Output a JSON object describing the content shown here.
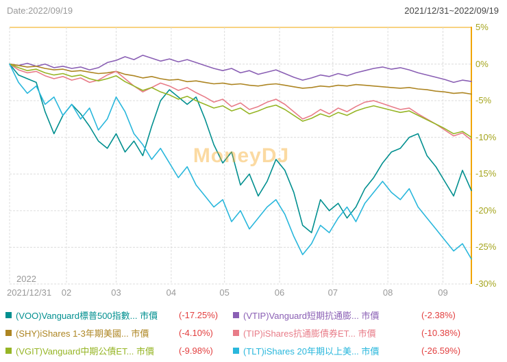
{
  "header": {
    "date_label": "Date:2022/09/19",
    "range_label": "2021/12/31~2022/09/19"
  },
  "watermark": "MoneyDJ",
  "colors": {
    "axis_line": "#f0a500",
    "grid_line": "#dcdcdc",
    "y_tick_label": "#a5a51e",
    "x_tick_label": "#999999",
    "negative_value": "#e23e3e",
    "watermark": "#f7a823"
  },
  "chart_data": {
    "type": "line",
    "title": "",
    "x_axis": {
      "year_label": "2022",
      "ticks": [
        {
          "day": 0,
          "label": "2021/12/31"
        },
        {
          "day": 32,
          "label": "02"
        },
        {
          "day": 60,
          "label": "03"
        },
        {
          "day": 91,
          "label": "04"
        },
        {
          "day": 121,
          "label": "05"
        },
        {
          "day": 152,
          "label": "06"
        },
        {
          "day": 182,
          "label": "07"
        },
        {
          "day": 213,
          "label": "08"
        },
        {
          "day": 244,
          "label": "09"
        }
      ]
    },
    "y_axis": {
      "min": -30,
      "max": 5,
      "ticks": [
        {
          "value": 5,
          "label": "5%"
        },
        {
          "value": 0,
          "label": "0%"
        },
        {
          "value": -5,
          "label": "-5%"
        },
        {
          "value": -10,
          "label": "-10%"
        },
        {
          "value": -15,
          "label": "-15%"
        },
        {
          "value": -20,
          "label": "-20%"
        },
        {
          "value": -25,
          "label": "-25%"
        },
        {
          "value": -30,
          "label": "-30%"
        }
      ]
    },
    "x_days": [
      0,
      5,
      10,
      15,
      20,
      25,
      30,
      35,
      40,
      45,
      50,
      55,
      60,
      65,
      70,
      75,
      80,
      85,
      90,
      95,
      100,
      105,
      110,
      115,
      120,
      125,
      130,
      135,
      140,
      145,
      150,
      155,
      160,
      165,
      170,
      175,
      180,
      185,
      190,
      195,
      200,
      205,
      210,
      215,
      220,
      225,
      230,
      235,
      240,
      245,
      250,
      255,
      260
    ],
    "x_max_days": 260,
    "series": [
      {
        "id": "VOO",
        "name": "(VOO)Vanguard標普500指數... 市價",
        "pct_label": "(-17.25%)",
        "final_pct": -17.25,
        "color": "#008f8f",
        "values": [
          0,
          -1.5,
          -2.0,
          -2.5,
          -6.5,
          -9.5,
          -7.0,
          -5.5,
          -6.8,
          -8.5,
          -10.5,
          -11.5,
          -9.5,
          -12.0,
          -10.5,
          -12.5,
          -8.5,
          -5.0,
          -3.5,
          -4.5,
          -5.5,
          -4.5,
          -7.5,
          -11.0,
          -13.5,
          -12.0,
          -16.5,
          -15.0,
          -18.0,
          -16.0,
          -13.0,
          -14.5,
          -17.5,
          -22.0,
          -23.0,
          -18.5,
          -20.0,
          -19.0,
          -21.0,
          -19.5,
          -17.0,
          -15.5,
          -13.5,
          -12.0,
          -11.5,
          -10.0,
          -9.5,
          -12.5,
          -14.0,
          -16.0,
          -18.0,
          -14.5,
          -17.25
        ]
      },
      {
        "id": "VTIP",
        "name": "(VTIP)Vanguard短期抗通膨... 市價",
        "pct_label": "(-2.38%)",
        "final_pct": -2.38,
        "color": "#8a5fb4",
        "values": [
          0,
          -0.2,
          0.1,
          -0.3,
          0.0,
          -0.5,
          -0.3,
          -0.6,
          -0.4,
          -0.8,
          -0.5,
          0.2,
          0.5,
          1.0,
          0.6,
          1.2,
          0.8,
          0.4,
          0.7,
          0.3,
          0.6,
          0.2,
          -0.2,
          -0.6,
          -0.9,
          -0.6,
          -1.2,
          -0.9,
          -1.4,
          -1.1,
          -0.8,
          -1.3,
          -1.8,
          -2.2,
          -1.9,
          -1.5,
          -1.7,
          -1.3,
          -1.6,
          -1.2,
          -0.9,
          -0.6,
          -0.4,
          -0.7,
          -0.5,
          -0.8,
          -1.2,
          -1.5,
          -1.8,
          -2.1,
          -2.5,
          -2.2,
          -2.38
        ]
      },
      {
        "id": "SHY",
        "name": "(SHY)iShares 1-3年期美國... 市價",
        "pct_label": "(-4.10%)",
        "final_pct": -4.1,
        "color": "#ad8522",
        "values": [
          0,
          -0.2,
          -0.4,
          -0.3,
          -0.6,
          -0.8,
          -0.7,
          -1.0,
          -0.9,
          -1.1,
          -1.3,
          -1.2,
          -1.0,
          -1.4,
          -1.6,
          -1.9,
          -1.7,
          -2.0,
          -2.2,
          -2.1,
          -2.4,
          -2.3,
          -2.5,
          -2.7,
          -2.6,
          -2.8,
          -2.7,
          -2.9,
          -3.0,
          -2.8,
          -2.7,
          -2.9,
          -3.1,
          -3.3,
          -3.2,
          -3.0,
          -3.1,
          -2.9,
          -3.0,
          -2.8,
          -2.9,
          -3.0,
          -3.1,
          -3.2,
          -3.3,
          -3.2,
          -3.4,
          -3.5,
          -3.7,
          -3.8,
          -4.0,
          -3.9,
          -4.1
        ]
      },
      {
        "id": "TIP",
        "name": "(TIP)iShares抗通膨債券ET... 市價",
        "pct_label": "(-10.38%)",
        "final_pct": -10.38,
        "color": "#e87c88",
        "values": [
          0,
          -0.8,
          -1.2,
          -1.0,
          -1.6,
          -2.0,
          -1.7,
          -2.2,
          -1.9,
          -2.5,
          -2.2,
          -1.5,
          -1.0,
          -2.0,
          -3.0,
          -3.8,
          -3.2,
          -2.6,
          -3.0,
          -3.6,
          -3.2,
          -3.9,
          -4.5,
          -5.2,
          -4.8,
          -5.8,
          -5.3,
          -6.2,
          -5.8,
          -5.2,
          -4.8,
          -5.5,
          -6.5,
          -7.5,
          -7.0,
          -6.2,
          -6.8,
          -6.0,
          -6.5,
          -5.8,
          -5.2,
          -5.0,
          -5.4,
          -5.8,
          -6.2,
          -6.0,
          -6.8,
          -7.5,
          -8.2,
          -9.0,
          -9.8,
          -9.4,
          -10.38
        ]
      },
      {
        "id": "VGIT",
        "name": "(VGIT)Vanguard中期公債ET... 市價",
        "pct_label": "(-9.98%)",
        "final_pct": -9.98,
        "color": "#96b525",
        "values": [
          0,
          -0.5,
          -0.9,
          -0.7,
          -1.2,
          -1.5,
          -1.3,
          -1.7,
          -1.5,
          -2.0,
          -2.3,
          -2.0,
          -1.6,
          -2.4,
          -3.0,
          -3.6,
          -3.2,
          -3.8,
          -4.2,
          -4.8,
          -4.4,
          -5.0,
          -5.5,
          -6.0,
          -5.7,
          -6.4,
          -6.0,
          -6.8,
          -6.4,
          -5.9,
          -5.6,
          -6.2,
          -7.0,
          -7.8,
          -7.4,
          -6.8,
          -7.2,
          -6.6,
          -7.0,
          -6.4,
          -6.0,
          -5.7,
          -6.0,
          -6.3,
          -6.6,
          -6.4,
          -7.0,
          -7.6,
          -8.2,
          -8.8,
          -9.5,
          -9.2,
          -9.98
        ]
      },
      {
        "id": "TLT",
        "name": "(TLT)iShares 20年期以上美... 市價",
        "pct_label": "(-26.59%)",
        "final_pct": -26.59,
        "color": "#29b7dc",
        "values": [
          0,
          -2.5,
          -4.0,
          -3.0,
          -5.5,
          -4.5,
          -7.0,
          -5.5,
          -7.5,
          -6.0,
          -9.0,
          -7.5,
          -4.5,
          -6.5,
          -9.5,
          -11.0,
          -13.0,
          -11.5,
          -13.5,
          -15.5,
          -14.0,
          -16.5,
          -18.0,
          -19.5,
          -18.5,
          -21.5,
          -20.0,
          -22.5,
          -21.0,
          -19.5,
          -18.5,
          -20.5,
          -23.5,
          -26.0,
          -24.5,
          -22.0,
          -23.0,
          -21.0,
          -19.5,
          -21.5,
          -19.0,
          -17.5,
          -16.0,
          -17.5,
          -18.5,
          -17.0,
          -19.5,
          -21.0,
          -22.5,
          -24.0,
          -25.5,
          -24.5,
          -26.59
        ]
      }
    ]
  }
}
